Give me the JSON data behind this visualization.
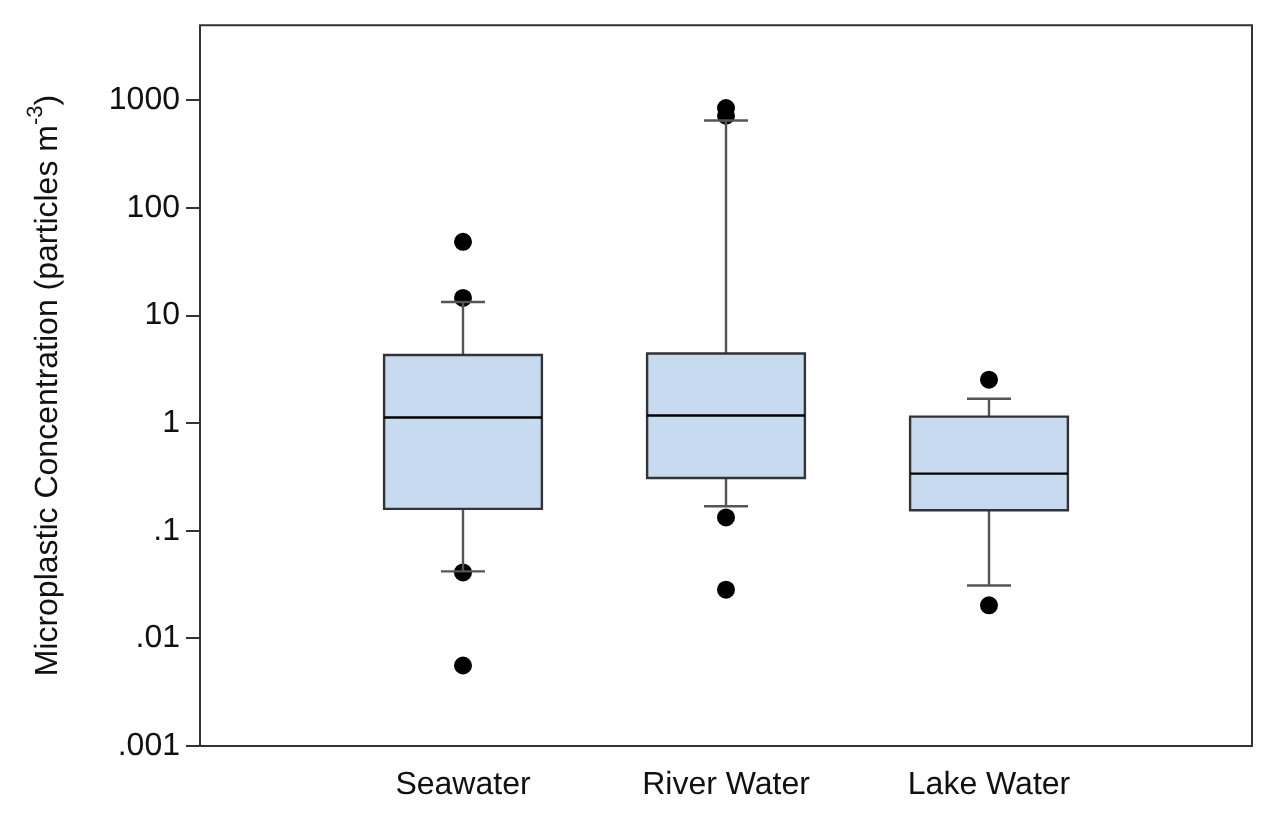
{
  "chart_data": {
    "type": "box",
    "ylabel": "Microplastic Concentration (particles m$^{-3}$)",
    "categories": [
      "Seawater",
      "River Water",
      "Lake Water"
    ],
    "log": true,
    "ylim": [
      0.001,
      5000
    ],
    "yticks": [
      {
        "value": 0.001,
        "label": ".001"
      },
      {
        "value": 0.01,
        "label": ".01"
      },
      {
        "value": 0.1,
        "label": ".1"
      },
      1,
      10,
      100,
      1000
    ],
    "series": [
      {
        "color": "#c6dbf0",
        "boxes": [
          {
            "low": 0.042,
            "q1": 0.16,
            "median": 1.13,
            "q3": 4.3,
            "high": 13.4,
            "outliers": [
              48.5,
              14.6,
              0.041,
              0.0056
            ]
          },
          {
            "low": 0.169,
            "q1": 0.31,
            "median": 1.18,
            "q3": 4.45,
            "high": 650,
            "outliers": [
              850,
              720,
              0.133,
              0.0284
            ]
          },
          {
            "low": 0.031,
            "q1": 0.155,
            "median": 0.34,
            "q3": 1.15,
            "high": 1.69,
            "outliers": [
              2.54,
              0.0203
            ]
          }
        ]
      }
    ]
  }
}
